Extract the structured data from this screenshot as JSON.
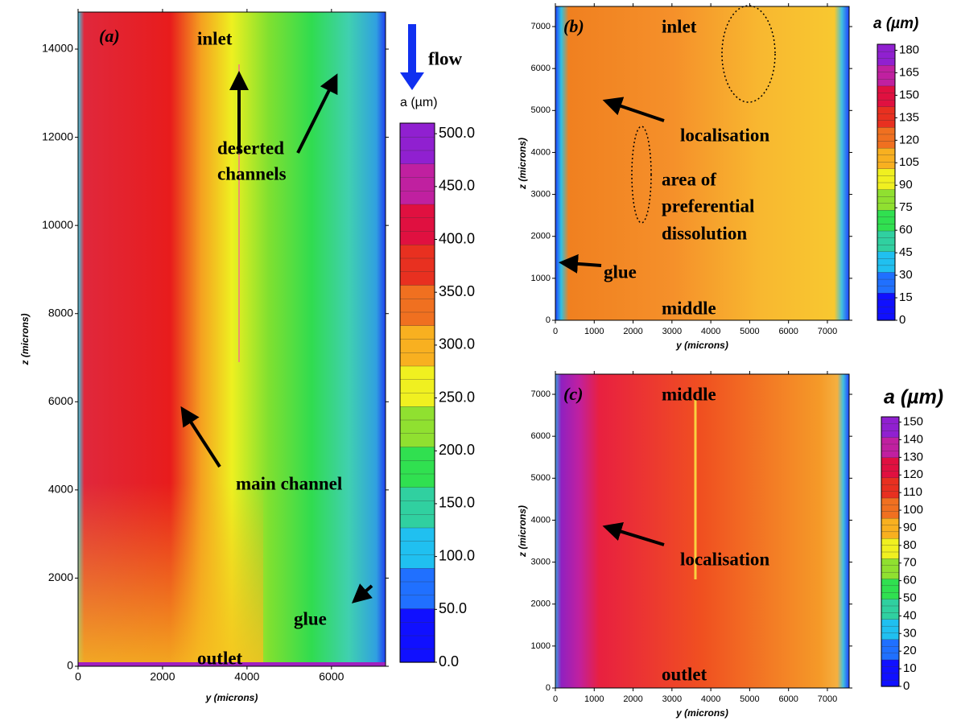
{
  "chart_data": [
    {
      "type": "contour",
      "panel": "(a)",
      "xlabel": "y (microns)",
      "ylabel": "z (microns)",
      "xlim": [
        0,
        7280
      ],
      "ylim": [
        0,
        14840
      ],
      "xticks": [
        0,
        2000,
        4000,
        6000
      ],
      "yticks": [
        0,
        2000,
        4000,
        6000,
        8000,
        10000,
        12000,
        14000
      ],
      "colorbar": {
        "label": "a (µm)",
        "lim": [
          0,
          510
        ],
        "ticks": [
          {
            "value": 0,
            "label": "0.0"
          },
          {
            "value": 50,
            "label": "50.0"
          },
          {
            "value": 100,
            "label": "100.0"
          },
          {
            "value": 150,
            "label": "150.0"
          },
          {
            "value": 200,
            "label": "200.0"
          },
          {
            "value": 250,
            "label": "250.0"
          },
          {
            "value": 300,
            "label": "300.0"
          },
          {
            "value": 350,
            "label": "350.0"
          },
          {
            "value": 400,
            "label": "400.0"
          },
          {
            "value": 450,
            "label": "450.0"
          },
          {
            "value": 500,
            "label": "500.0"
          }
        ]
      },
      "annotations": [
        "inlet",
        "flow",
        "deserted",
        "channels",
        "main channel",
        "glue",
        "outlet"
      ]
    },
    {
      "type": "contour",
      "panel": "(b)",
      "xlabel": "y (microns)",
      "ylabel": "z (microns)",
      "xlim": [
        0,
        7560
      ],
      "ylim": [
        0,
        7480
      ],
      "xticks": [
        0,
        1000,
        2000,
        3000,
        4000,
        5000,
        6000,
        7000
      ],
      "yticks": [
        0,
        1000,
        2000,
        3000,
        4000,
        5000,
        6000,
        7000
      ],
      "colorbar": {
        "label": "a (µm)",
        "lim": [
          0,
          184
        ],
        "ticks": [
          0,
          15,
          30,
          45,
          60,
          75,
          90,
          105,
          120,
          135,
          150,
          165,
          180
        ]
      },
      "annotations": [
        "inlet",
        "localisation",
        "area of",
        "preferential",
        "dissolution",
        "glue",
        "middle"
      ]
    },
    {
      "type": "contour",
      "panel": "(c)",
      "xlabel": "y (microns)",
      "ylabel": "z (microns)",
      "xlim": [
        0,
        7560
      ],
      "ylim": [
        0,
        7480
      ],
      "xticks": [
        0,
        1000,
        2000,
        3000,
        4000,
        5000,
        6000,
        7000
      ],
      "yticks": [
        0,
        1000,
        2000,
        3000,
        4000,
        5000,
        6000,
        7000
      ],
      "colorbar": {
        "label": "a (µm)",
        "lim": [
          0,
          153
        ],
        "ticks": [
          0,
          10,
          20,
          30,
          40,
          50,
          60,
          70,
          80,
          90,
          100,
          110,
          120,
          130,
          140,
          150
        ]
      },
      "annotations": [
        "middle",
        "localisation",
        "outlet"
      ]
    }
  ]
}
